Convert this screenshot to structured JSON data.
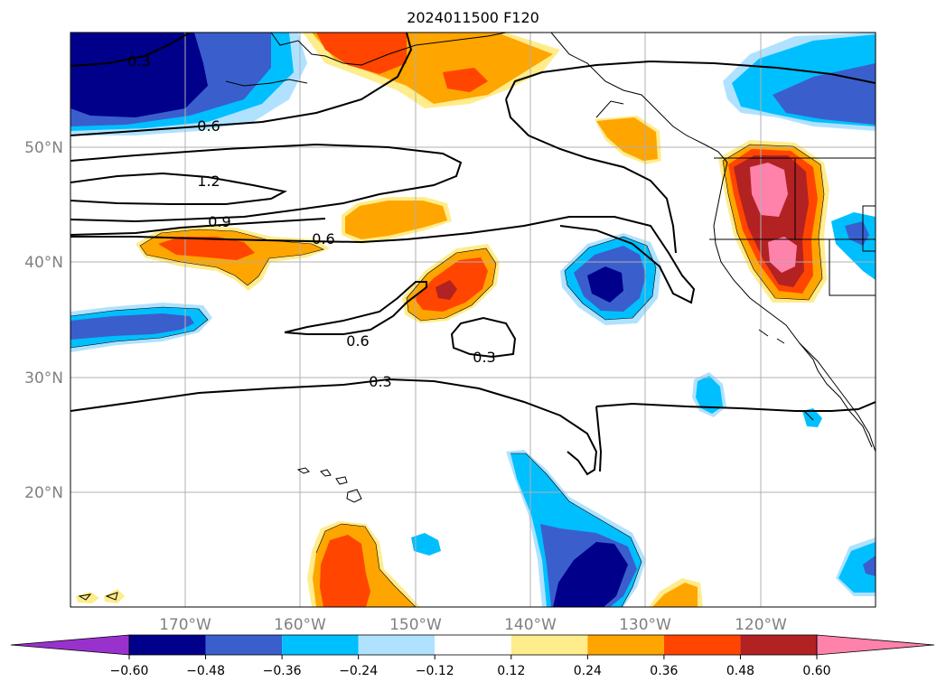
{
  "title": "2024011500 F120",
  "lat_labels": [
    "50°N",
    "40°N",
    "30°N",
    "20°N"
  ],
  "lon_labels": [
    "170°W",
    "160°W",
    "150°W",
    "140°W",
    "130°W",
    "120°W"
  ],
  "contour_labels": [
    "0.3",
    "0.6",
    "1.2",
    "0.9",
    "0.6",
    "0.6",
    "0.3",
    "0.3"
  ],
  "colorbar": {
    "ticks": [
      "−0.60",
      "−0.48",
      "−0.36",
      "−0.24",
      "−0.12",
      "0.12",
      "0.24",
      "0.36",
      "0.48",
      "0.60"
    ],
    "colors": [
      "#9932cc",
      "#00008b",
      "#3a5fcd",
      "#00bfff",
      "#b0e2ff",
      "#ffffff",
      "#ffec8b",
      "#ffa500",
      "#ff4500",
      "#b22222",
      "#ff82ab"
    ]
  },
  "colors": {
    "land_outline": "#000000",
    "grid": "#b0b0b0",
    "contour": "#000000",
    "tick_label": "#808080"
  }
}
